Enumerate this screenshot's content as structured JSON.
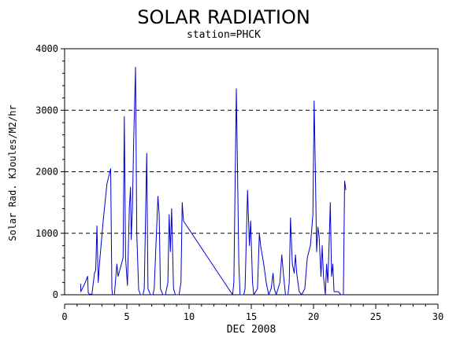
{
  "chart_data": {
    "type": "line",
    "title": "SOLAR RADIATION",
    "subtitle": "station=PHCK",
    "xlabel": "DEC 2008",
    "ylabel": "Solar Rad. KJoules/M2/hr",
    "xlim": [
      0,
      30
    ],
    "ylim": [
      0,
      4000
    ],
    "x_ticks": [
      0,
      5,
      10,
      15,
      20,
      25,
      30
    ],
    "y_ticks": [
      0,
      1000,
      2000,
      3000,
      4000
    ],
    "grid": "y-dashed",
    "series": [
      {
        "color": "#0000cc",
        "points": [
          [
            1.3,
            180
          ],
          [
            1.3,
            50
          ],
          [
            1.5,
            130
          ],
          [
            1.7,
            220
          ],
          [
            1.85,
            300
          ],
          [
            1.9,
            30
          ],
          [
            2.0,
            10
          ],
          [
            2.2,
            10
          ],
          [
            2.4,
            350
          ],
          [
            2.5,
            400
          ],
          [
            2.6,
            1120
          ],
          [
            2.7,
            200
          ],
          [
            2.8,
            500
          ],
          [
            3.1,
            1200
          ],
          [
            3.4,
            1800
          ],
          [
            3.7,
            2050
          ],
          [
            3.8,
            100
          ],
          [
            3.85,
            0
          ],
          [
            4.0,
            0
          ],
          [
            4.2,
            500
          ],
          [
            4.3,
            300
          ],
          [
            4.5,
            450
          ],
          [
            4.7,
            600
          ],
          [
            4.8,
            2900
          ],
          [
            4.9,
            600
          ],
          [
            5.05,
            150
          ],
          [
            5.2,
            1400
          ],
          [
            5.3,
            1750
          ],
          [
            5.35,
            900
          ],
          [
            5.45,
            1400
          ],
          [
            5.55,
            2500
          ],
          [
            5.7,
            3700
          ],
          [
            5.8,
            1000
          ],
          [
            5.95,
            80
          ],
          [
            6.1,
            0
          ],
          [
            6.3,
            0
          ],
          [
            6.4,
            100
          ],
          [
            6.6,
            2300
          ],
          [
            6.7,
            100
          ],
          [
            6.9,
            0
          ],
          [
            7.1,
            0
          ],
          [
            7.2,
            100
          ],
          [
            7.4,
            1100
          ],
          [
            7.5,
            1600
          ],
          [
            7.6,
            1300
          ],
          [
            7.7,
            100
          ],
          [
            7.9,
            0
          ],
          [
            8.1,
            0
          ],
          [
            8.3,
            200
          ],
          [
            8.4,
            1300
          ],
          [
            8.5,
            700
          ],
          [
            8.6,
            1400
          ],
          [
            8.75,
            100
          ],
          [
            8.9,
            0
          ],
          [
            9.2,
            0
          ],
          [
            9.35,
            200
          ],
          [
            9.45,
            1500
          ],
          [
            9.55,
            1200
          ],
          [
            13.5,
            0
          ],
          [
            13.6,
            200
          ],
          [
            13.8,
            3350
          ],
          [
            14.0,
            500
          ],
          [
            14.1,
            0
          ],
          [
            14.4,
            0
          ],
          [
            14.5,
            100
          ],
          [
            14.7,
            1700
          ],
          [
            14.85,
            800
          ],
          [
            14.95,
            1200
          ],
          [
            15.1,
            200
          ],
          [
            15.2,
            0
          ],
          [
            15.5,
            100
          ],
          [
            15.65,
            1000
          ],
          [
            15.75,
            800
          ],
          [
            16.0,
            500
          ],
          [
            16.2,
            200
          ],
          [
            16.4,
            0
          ],
          [
            16.6,
            100
          ],
          [
            16.75,
            350
          ],
          [
            16.85,
            100
          ],
          [
            17.0,
            0
          ],
          [
            17.3,
            200
          ],
          [
            17.45,
            650
          ],
          [
            17.6,
            300
          ],
          [
            17.75,
            0
          ],
          [
            17.95,
            0
          ],
          [
            18.05,
            200
          ],
          [
            18.15,
            1250
          ],
          [
            18.3,
            500
          ],
          [
            18.45,
            350
          ],
          [
            18.55,
            650
          ],
          [
            18.65,
            350
          ],
          [
            18.85,
            50
          ],
          [
            19.05,
            0
          ],
          [
            19.3,
            100
          ],
          [
            19.5,
            600
          ],
          [
            19.75,
            800
          ],
          [
            19.95,
            1300
          ],
          [
            20.05,
            3150
          ],
          [
            20.15,
            2000
          ],
          [
            20.25,
            700
          ],
          [
            20.35,
            1100
          ],
          [
            20.45,
            950
          ],
          [
            20.6,
            300
          ],
          [
            20.7,
            800
          ],
          [
            20.8,
            300
          ],
          [
            20.95,
            0
          ],
          [
            21.05,
            500
          ],
          [
            21.15,
            200
          ],
          [
            21.25,
            800
          ],
          [
            21.35,
            1500
          ],
          [
            21.45,
            300
          ],
          [
            21.55,
            500
          ],
          [
            21.65,
            50
          ],
          [
            21.8,
            50
          ],
          [
            22.0,
            50
          ],
          [
            22.2,
            0
          ],
          [
            22.4,
            0
          ],
          [
            22.5,
            1850
          ],
          [
            22.6,
            1700
          ]
        ]
      }
    ]
  }
}
